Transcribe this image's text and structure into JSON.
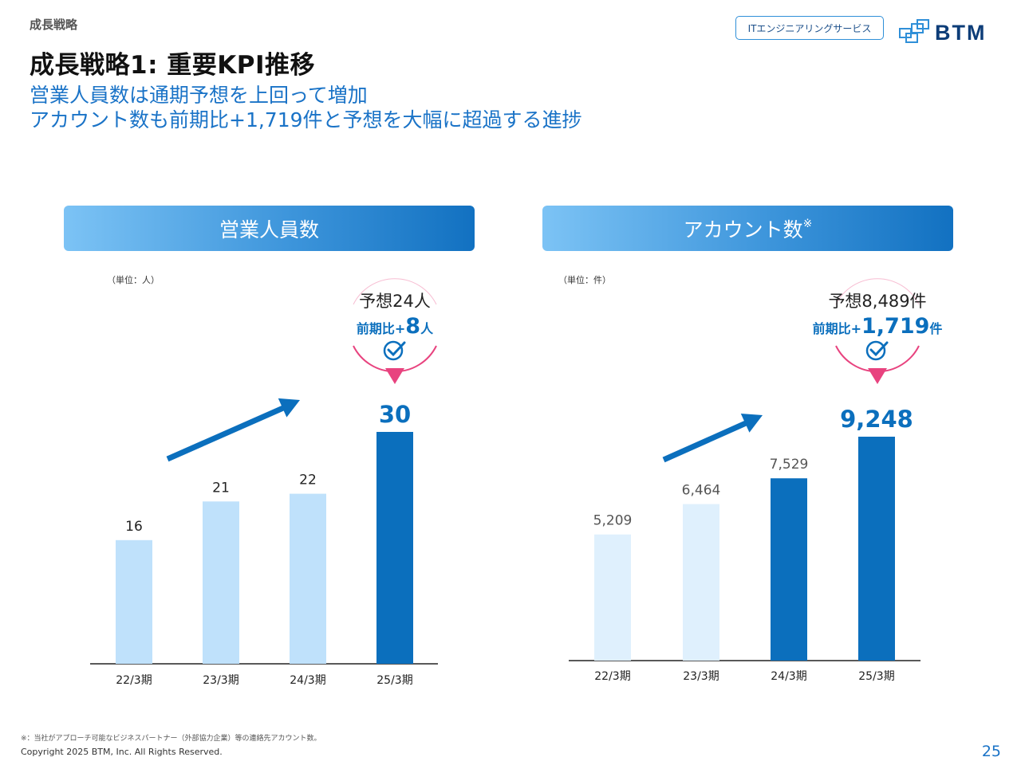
{
  "section_label": "成長戦略",
  "title": "成長戦略1: 重要KPI推移",
  "subtitle_line1": "営業人員数は通期予想を上回って増加",
  "subtitle_line2": "アカウント数も前期比+1,719件と予想を大幅に超過する進捗",
  "service_badge": "ITエンジニアリングサービス",
  "logo_text": "BTM",
  "chart_data": [
    {
      "type": "bar",
      "title": "営業人員数",
      "unit": "（単位：人）",
      "categories": [
        "22/3期",
        "23/3期",
        "24/3期",
        "25/3期"
      ],
      "values": [
        16,
        21,
        22,
        30
      ],
      "value_labels": [
        "16",
        "21",
        "22",
        "30"
      ],
      "bar_colors": [
        "#bfe1fb",
        "#bfe1fb",
        "#bfe1fb",
        "#0b6fbd"
      ],
      "callout": {
        "forecast": "予想24人",
        "yoy_prefix": "前期比+",
        "yoy_value": "8",
        "yoy_suffix": "人"
      }
    },
    {
      "type": "bar",
      "title": "アカウント数",
      "title_mark": "※",
      "unit": "（単位：件）",
      "categories": [
        "22/3期",
        "23/3期",
        "24/3期",
        "25/3期"
      ],
      "values": [
        5209,
        6464,
        7529,
        9248
      ],
      "value_labels": [
        "5,209",
        "6,464",
        "7,529",
        "9,248"
      ],
      "bar_colors": [
        "#dff0fd",
        "#dff0fd",
        "#0b6fbd",
        "#0b6fbd"
      ],
      "callout": {
        "forecast": "予想8,489件",
        "yoy_prefix": "前期比+",
        "yoy_value": "1,719",
        "yoy_suffix": "件"
      }
    }
  ],
  "colors": {
    "accent": "#1a73c7",
    "dark_bar": "#0b6fbd",
    "callout": "#e8437f"
  },
  "footnote": "※：当社がアプローチ可能なビジネスパートナー（外部協力企業）等の連絡先アカウント数。",
  "copyright": "Copyright 2025 BTM, Inc. All Rights Reserved.",
  "page_number": "25"
}
